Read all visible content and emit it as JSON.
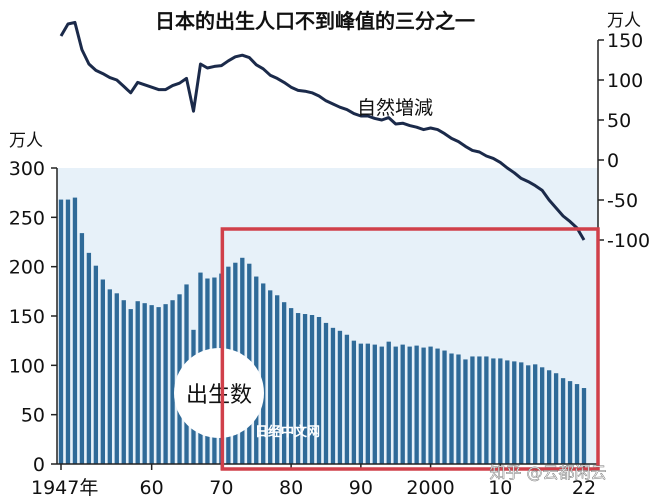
{
  "colors": {
    "bar": "#2f6a98",
    "line": "#1b2a4a",
    "highlight": "#d0404a",
    "plot_bg": "#e7f1f9",
    "axis": "#222222",
    "watermark": "#ffffff"
  },
  "labels": {
    "births_label": "出生数",
    "natural_change_label": "自然増減",
    "watermark_nikkei": "日经中文网",
    "watermark_zhihu": "知乎 @云都闲云"
  },
  "chart_data": {
    "type": "bar",
    "title": "日本的出生人口不到峰值的三分之一",
    "xlabel": "",
    "grid": false,
    "x_tick_labels": [
      "1947年",
      "60",
      "70",
      "80",
      "90",
      "2000",
      "10",
      "22"
    ],
    "x_tick_years": [
      1947,
      1960,
      1970,
      1980,
      1990,
      2000,
      2010,
      2022
    ],
    "left_axis": {
      "unit": "万人",
      "ylim": [
        0,
        300
      ],
      "ticks": [
        0,
        50,
        100,
        150,
        200,
        250,
        300
      ]
    },
    "right_axis": {
      "unit": "万人",
      "ylim": [
        -100,
        150
      ],
      "ticks": [
        -100,
        -50,
        0,
        50,
        100,
        150
      ]
    },
    "series": [
      {
        "name": "出生数",
        "kind": "bar",
        "axis": "left",
        "x": [
          1947,
          1948,
          1949,
          1950,
          1951,
          1952,
          1953,
          1954,
          1955,
          1956,
          1957,
          1958,
          1959,
          1960,
          1961,
          1962,
          1963,
          1964,
          1965,
          1966,
          1967,
          1968,
          1969,
          1970,
          1971,
          1972,
          1973,
          1974,
          1975,
          1976,
          1977,
          1978,
          1979,
          1980,
          1981,
          1982,
          1983,
          1984,
          1985,
          1986,
          1987,
          1988,
          1989,
          1990,
          1991,
          1992,
          1993,
          1994,
          1995,
          1996,
          1997,
          1998,
          1999,
          2000,
          2001,
          2002,
          2003,
          2004,
          2005,
          2006,
          2007,
          2008,
          2009,
          2010,
          2011,
          2012,
          2013,
          2014,
          2015,
          2016,
          2017,
          2018,
          2019,
          2020,
          2021,
          2022
        ],
        "values": [
          268,
          268,
          270,
          234,
          214,
          201,
          187,
          177,
          173,
          166,
          157,
          165,
          163,
          161,
          159,
          162,
          166,
          172,
          182,
          136,
          194,
          188,
          189,
          193,
          200,
          204,
          209,
          203,
          190,
          183,
          176,
          171,
          164,
          158,
          153,
          152,
          151,
          149,
          143,
          138,
          135,
          131,
          125,
          122,
          122,
          121,
          119,
          124,
          119,
          121,
          119,
          120,
          118,
          119,
          117,
          115,
          112,
          111,
          106,
          109,
          109,
          109,
          107,
          107,
          105,
          104,
          103,
          100,
          101,
          98,
          95,
          92,
          87,
          84,
          81,
          77
        ]
      },
      {
        "name": "自然増減",
        "kind": "line",
        "axis": "right",
        "x": [
          1947,
          1948,
          1949,
          1950,
          1951,
          1952,
          1953,
          1954,
          1955,
          1956,
          1957,
          1958,
          1959,
          1960,
          1961,
          1962,
          1963,
          1964,
          1965,
          1966,
          1967,
          1968,
          1969,
          1970,
          1971,
          1972,
          1973,
          1974,
          1975,
          1976,
          1977,
          1978,
          1979,
          1980,
          1981,
          1982,
          1983,
          1984,
          1985,
          1986,
          1987,
          1988,
          1989,
          1990,
          1991,
          1992,
          1993,
          1994,
          1995,
          1996,
          1997,
          1998,
          1999,
          2000,
          2001,
          2002,
          2003,
          2004,
          2005,
          2006,
          2007,
          2008,
          2009,
          2010,
          2011,
          2012,
          2013,
          2014,
          2015,
          2016,
          2017,
          2018,
          2019,
          2020,
          2021,
          2022
        ],
        "values": [
          155,
          170,
          172,
          138,
          120,
          112,
          108,
          103,
          100,
          92,
          84,
          97,
          94,
          91,
          88,
          88,
          93,
          96,
          102,
          61,
          120,
          115,
          117,
          118,
          124,
          129,
          131,
          128,
          119,
          114,
          106,
          102,
          97,
          91,
          87,
          86,
          84,
          80,
          74,
          70,
          66,
          63,
          58,
          55,
          55,
          52,
          50,
          53,
          45,
          46,
          43,
          41,
          38,
          40,
          38,
          33,
          27,
          23,
          17,
          12,
          10,
          5,
          2,
          -3,
          -10,
          -16,
          -23,
          -27,
          -32,
          -38,
          -50,
          -60,
          -70,
          -77,
          -85,
          -100
        ]
      }
    ],
    "highlight_range": [
      1971,
      2022
    ]
  }
}
